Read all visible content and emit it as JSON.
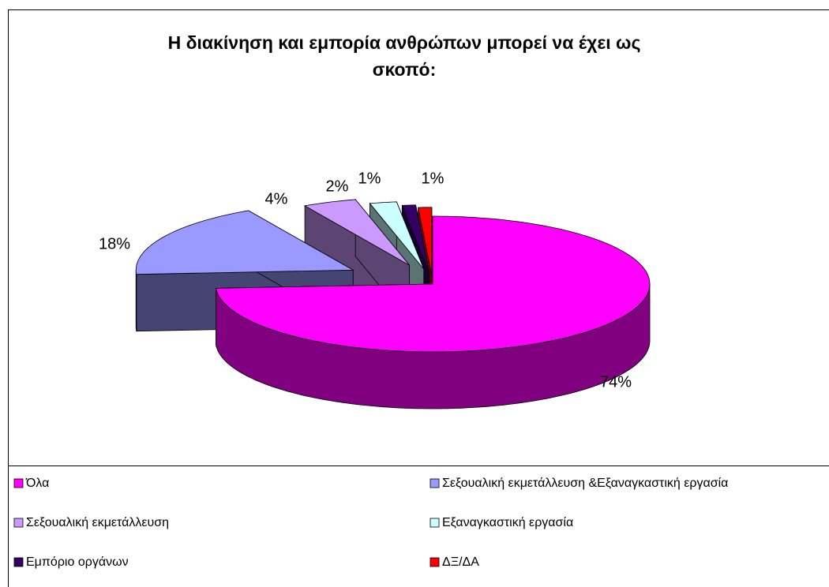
{
  "chart_data": {
    "type": "pie3d",
    "title": "Η διακίνηση και εμπορία ανθρώπων μπορεί να έχει ως σκοπό:",
    "categories": [
      "Όλα",
      "Σεξουαλική εκμετάλλευση &Εξαναγκαστική εργασία",
      "Σεξουαλική εκμετάλλευση",
      "Εξαναγκαστική εργασία",
      "Εμπόριο οργάνων",
      "ΔΞ/ΔΑ"
    ],
    "values": [
      74,
      18,
      4,
      2,
      1,
      1
    ],
    "value_labels": [
      "74%",
      "18%",
      "4%",
      "2%",
      "1%",
      "1%"
    ],
    "colors": [
      "#ff00ff",
      "#9999ff",
      "#cc99ff",
      "#ccffff",
      "#330066",
      "#ff0000"
    ],
    "legend": "bottom"
  }
}
